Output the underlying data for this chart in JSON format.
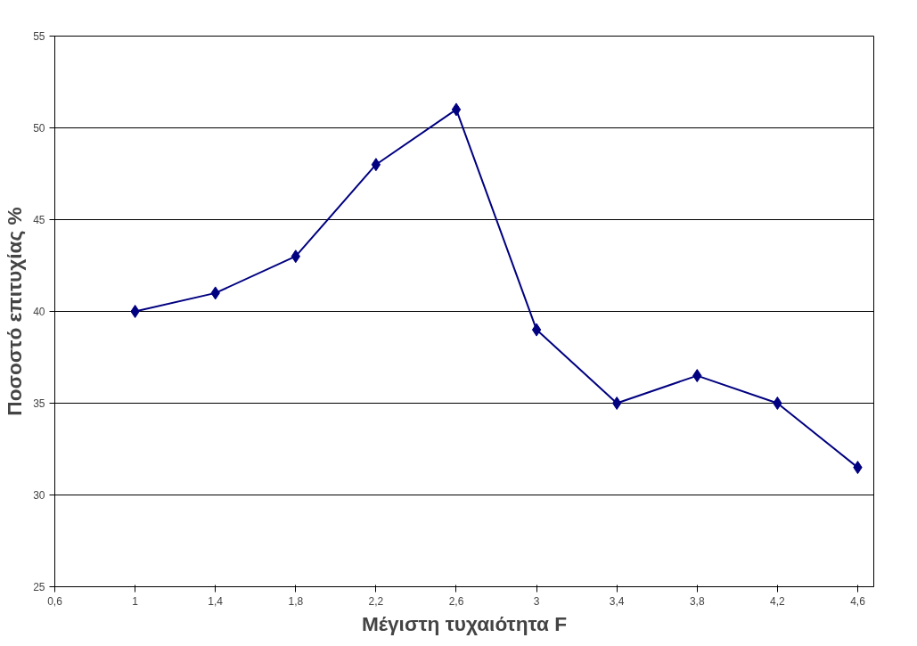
{
  "chart_data": {
    "type": "line",
    "xlabel": "Μέγιστη τυχαιότητα F",
    "ylabel": "Ποσοστό επιτυχίας %",
    "x": [
      1,
      1.4,
      1.8,
      2.2,
      2.6,
      3,
      3.4,
      3.8,
      4.2,
      4.6
    ],
    "series": [
      {
        "color": "#000080",
        "values": [
          40,
          41,
          43,
          48,
          51,
          39,
          35,
          36.5,
          35,
          31.5
        ]
      }
    ],
    "xlim": [
      0.6,
      4.68
    ],
    "xticks": [
      {
        "value": 0.6,
        "label": "0,6"
      },
      1,
      {
        "value": 1.4,
        "label": "1,4"
      },
      {
        "value": 1.8,
        "label": "1,8"
      },
      {
        "value": 2.2,
        "label": "2,2"
      },
      {
        "value": 2.6,
        "label": "2,6"
      },
      3,
      {
        "value": 3.4,
        "label": "3,4"
      },
      {
        "value": 3.8,
        "label": "3,8"
      },
      {
        "value": 4.2,
        "label": "4,2"
      },
      {
        "value": 4.6,
        "label": "4,6"
      }
    ],
    "ylim": [
      25,
      55
    ],
    "yticks": [
      25,
      30,
      35,
      40,
      45,
      50,
      55
    ],
    "grid": "y",
    "marker": "diamond",
    "line_style": "solid"
  }
}
